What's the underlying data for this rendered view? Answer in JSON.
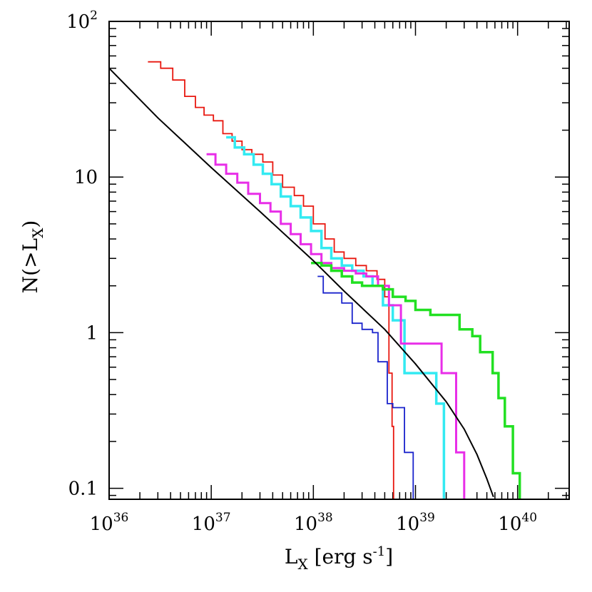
{
  "chart_data": {
    "type": "line",
    "xscale": "log",
    "yscale": "log",
    "xlim": [
      1e+36,
      3.2e+40
    ],
    "ylim": [
      0.085,
      100
    ],
    "xlabel": {
      "main": "L",
      "sub": "X",
      "rest": " [erg s",
      "sup": "-1",
      "end": "]"
    },
    "ylabel": {
      "pre": "N(>L",
      "sub": "X",
      "post": ")"
    },
    "xticks": [
      {
        "value": 1e+36,
        "base": "10",
        "exp": "36"
      },
      {
        "value": 1e+37,
        "base": "10",
        "exp": "37"
      },
      {
        "value": 1e+38,
        "base": "10",
        "exp": "38"
      },
      {
        "value": 1e+39,
        "base": "10",
        "exp": "39"
      },
      {
        "value": 1e+40,
        "base": "10",
        "exp": "40"
      }
    ],
    "yticks": [
      {
        "value": 0.1,
        "label": "0.1"
      },
      {
        "value": 1,
        "label": "1"
      },
      {
        "value": 10,
        "label": "10"
      },
      {
        "value": 100,
        "label": "10",
        "exp": "2"
      }
    ],
    "series": [
      {
        "name": "red",
        "color": "#e8170f",
        "width": 1.8,
        "step": true,
        "x": [
          2.4e+36,
          3.2e+36,
          4.2e+36,
          5.5e+36,
          7e+36,
          8.5e+36,
          1.05e+37,
          1.3e+37,
          1.6e+37,
          2e+37,
          2.5e+37,
          3.2e+37,
          4e+37,
          5e+37,
          6.5e+37,
          8e+37,
          1e+38,
          1.3e+38,
          1.6e+38,
          2e+38,
          2.6e+38,
          3.3e+38,
          4.2e+38,
          5e+38,
          5.5e+38,
          5.9e+38,
          6.1e+38
        ],
        "y": [
          55,
          50,
          42,
          33,
          28,
          25,
          23,
          19,
          17,
          15,
          14,
          12.5,
          10.3,
          8.6,
          7.6,
          6.5,
          5.0,
          4.0,
          3.3,
          3.0,
          2.7,
          2.5,
          2.2,
          1.7,
          0.55,
          0.25,
          0.085
        ]
      },
      {
        "name": "cyan",
        "color": "#33eaf2",
        "width": 3.5,
        "step": true,
        "x": [
          1.4e+37,
          1.7e+37,
          2.1e+37,
          2.6e+37,
          3.2e+37,
          3.9e+37,
          4.8e+37,
          6e+37,
          7.5e+37,
          9.5e+37,
          1.2e+38,
          1.5e+38,
          1.9e+38,
          2.4e+38,
          3.1e+38,
          3.8e+38,
          4.8e+38,
          6e+38,
          7.8e+38,
          1e+39,
          1.3e+39,
          1.6e+39,
          1.9e+39
        ],
        "y": [
          18,
          15.5,
          14,
          12,
          10.5,
          9.0,
          7.5,
          6.5,
          5.5,
          4.5,
          3.5,
          3.0,
          2.7,
          2.5,
          2.3,
          2.0,
          1.5,
          1.2,
          0.55,
          0.55,
          0.55,
          0.35,
          0.085
        ]
      },
      {
        "name": "magenta",
        "color": "#e82ee8",
        "width": 3.0,
        "step": true,
        "x": [
          9e+36,
          1.1e+37,
          1.4e+37,
          1.8e+37,
          2.3e+37,
          3e+37,
          3.8e+37,
          4.8e+37,
          6e+37,
          7.5e+37,
          9.5e+37,
          1.2e+38,
          1.5e+38,
          2e+38,
          2.6e+38,
          3.3e+38,
          4.3e+38,
          5.5e+38,
          7.2e+38,
          9.5e+38,
          1.3e+39,
          1.8e+39,
          2.5e+39,
          3e+39
        ],
        "y": [
          14,
          12,
          10.5,
          9.2,
          7.8,
          6.8,
          6.0,
          5.0,
          4.3,
          3.7,
          3.2,
          2.8,
          2.6,
          2.5,
          2.4,
          2.3,
          2.0,
          1.5,
          0.85,
          0.85,
          0.85,
          0.55,
          0.17,
          0.085
        ]
      },
      {
        "name": "green",
        "color": "#22e022",
        "width": 3.5,
        "step": true,
        "x": [
          9.5e+37,
          1.2e+38,
          1.5e+38,
          1.9e+38,
          2.4e+38,
          3e+38,
          3.8e+38,
          4.8e+38,
          6e+38,
          8e+38,
          1e+39,
          1.4e+39,
          2e+39,
          2.7e+39,
          3.6e+39,
          4.3e+39,
          5e+39,
          5.7e+39,
          6.5e+39,
          7.5e+39,
          9e+39,
          1.05e+40
        ],
        "y": [
          2.8,
          2.7,
          2.5,
          2.3,
          2.1,
          2.0,
          2.0,
          1.9,
          1.7,
          1.6,
          1.4,
          1.3,
          1.3,
          1.05,
          0.95,
          0.75,
          0.75,
          0.55,
          0.38,
          0.25,
          0.125,
          0.085
        ]
      },
      {
        "name": "blue",
        "color": "#1a23cc",
        "width": 1.8,
        "step": true,
        "x": [
          1.1e+38,
          1.25e+38,
          1.5e+38,
          1.9e+38,
          2.4e+38,
          3e+38,
          3.8e+38,
          4.3e+38,
          4.8e+38,
          5.3e+38,
          6e+38,
          6.8e+38,
          7.8e+38,
          9e+38,
          9.5e+38
        ],
        "y": [
          2.3,
          1.8,
          1.8,
          1.55,
          1.15,
          1.05,
          1.0,
          0.65,
          0.65,
          0.35,
          0.33,
          0.33,
          0.17,
          0.17,
          0.085
        ]
      },
      {
        "name": "model",
        "color": "#000000",
        "width": 2.0,
        "step": false,
        "x": [
          1e+36,
          3e+36,
          1e+37,
          3e+37,
          1e+38,
          2e+38,
          5e+38,
          1e+39,
          2e+39,
          3e+39,
          4e+39,
          5e+39,
          5.8e+39
        ],
        "y": [
          50,
          24,
          11.5,
          6.0,
          2.9,
          1.85,
          1.05,
          0.63,
          0.36,
          0.24,
          0.165,
          0.115,
          0.088
        ]
      }
    ]
  }
}
